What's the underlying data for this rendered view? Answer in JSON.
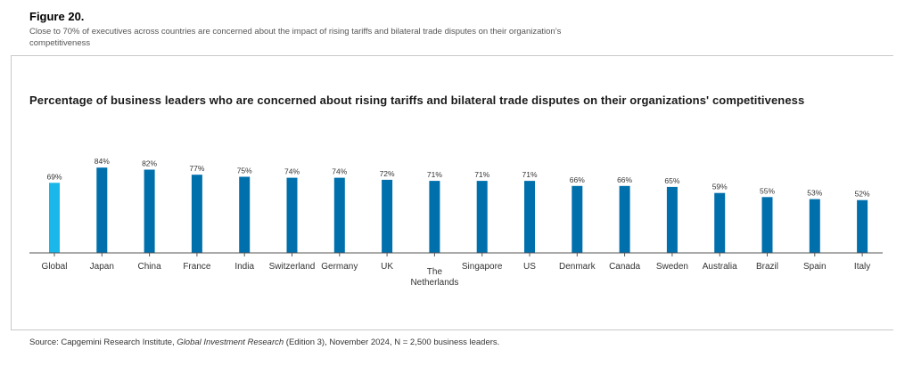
{
  "figure": {
    "label": "Figure 20.",
    "caption": "Close to 70% of executives across countries are concerned about the impact of rising tariffs and bilateral trade disputes on their organization’s competitiveness"
  },
  "source": {
    "prefix": "Source: Capgemini Research Institute, ",
    "title": "Global Investment Research",
    "suffix": " (Edition 3), November 2024, N = 2,500 business leaders."
  },
  "colors": {
    "global_bar": "#1ab7ea",
    "country_bar": "#0070ad",
    "axis": "#555555"
  },
  "chart_data": {
    "type": "bar",
    "title": "Percentage of business leaders who are concerned about rising tariffs and bilateral trade disputes on their organizations' competitiveness",
    "categories": [
      "Global",
      "Japan",
      "China",
      "France",
      "India",
      "Switzerland",
      "Germany",
      "UK",
      "The Netherlands",
      "Singapore",
      "US",
      "Denmark",
      "Canada",
      "Sweden",
      "Australia",
      "Brazil",
      "Spain",
      "Italy"
    ],
    "values": [
      69,
      84,
      82,
      77,
      75,
      74,
      74,
      72,
      71,
      71,
      71,
      66,
      66,
      65,
      59,
      55,
      53,
      52
    ],
    "value_labels": [
      "69%",
      "84%",
      "82%",
      "77%",
      "75%",
      "74%",
      "74%",
      "72%",
      "71%",
      "71%",
      "71%",
      "66%",
      "66%",
      "65%",
      "59%",
      "55%",
      "53%",
      "52%"
    ],
    "unit": "%",
    "xlabel": "",
    "ylabel": "",
    "ylim": [
      0,
      100
    ],
    "grid": false,
    "legend": "none",
    "highlight": "Global"
  }
}
